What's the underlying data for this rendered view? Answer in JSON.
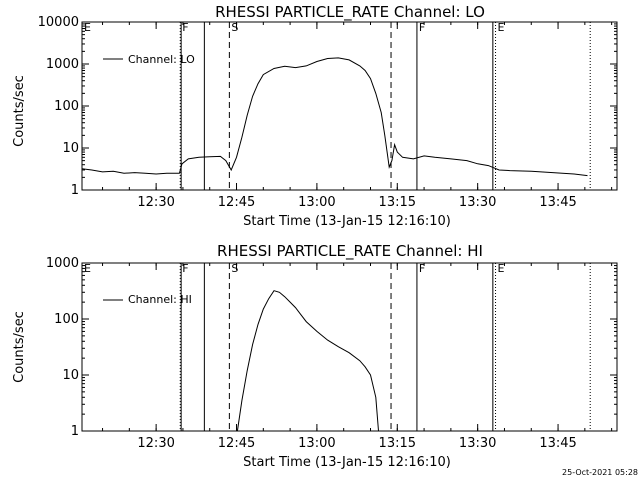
{
  "footer": {
    "timestamp": "25-Oct-2021 05:28"
  },
  "colors": {
    "background": "#ffffff",
    "ink": "#000000"
  },
  "chart_data": [
    {
      "type": "line",
      "title": "RHESSI PARTICLE_RATE Channel: LO",
      "xlabel": "Start Time (13-Jan-15 12:16:10)",
      "ylabel": "Counts/sec",
      "y_scale": "log",
      "ylim": [
        1,
        10000
      ],
      "xlim": [
        "12:16:10",
        "13:56:00"
      ],
      "y_ticks": [
        "1",
        "10",
        "100",
        "1000",
        "10000"
      ],
      "x_ticks": [
        "12:30",
        "12:45",
        "13:00",
        "13:15",
        "13:30",
        "13:45"
      ],
      "legend": {
        "entries": [
          "Channel: LO"
        ],
        "placement": "top-left"
      },
      "markers": [
        {
          "label": "E",
          "time": "12:16:10",
          "style": "dotted"
        },
        {
          "label": "F",
          "time": "12:34:30",
          "style": "dotted"
        },
        {
          "label": "",
          "time": "12:34:40",
          "style": "solid"
        },
        {
          "label": "",
          "time": "12:39:00",
          "style": "solid"
        },
        {
          "label": "S",
          "time": "12:43:40",
          "style": "dashed"
        },
        {
          "label": "",
          "time": "13:13:50",
          "style": "dashed"
        },
        {
          "label": "F",
          "time": "13:18:40",
          "style": "solid"
        },
        {
          "label": "",
          "time": "13:32:50",
          "style": "solid"
        },
        {
          "label": "E",
          "time": "13:33:20",
          "style": "dotted"
        },
        {
          "label": "",
          "time": "13:51:00",
          "style": "dotted"
        }
      ],
      "series": [
        {
          "name": "Channel: LO",
          "x": [
            "12:16:10",
            "12:18:00",
            "12:20:00",
            "12:22:00",
            "12:24:00",
            "12:26:00",
            "12:28:00",
            "12:30:00",
            "12:32:00",
            "12:34:20",
            "12:34:50",
            "12:36:00",
            "12:38:00",
            "12:40:00",
            "12:42:00",
            "12:43:00",
            "12:44:00",
            "12:45:00",
            "12:46:00",
            "12:47:00",
            "12:48:00",
            "12:49:00",
            "12:50:00",
            "12:52:00",
            "12:54:00",
            "12:56:00",
            "12:58:00",
            "13:00:00",
            "13:02:00",
            "13:04:00",
            "13:06:00",
            "13:08:00",
            "13:09:00",
            "13:10:00",
            "13:11:00",
            "13:12:00",
            "13:12:40",
            "13:13:30",
            "13:14:00",
            "13:14:30",
            "13:15:00",
            "13:16:00",
            "13:18:00",
            "13:20:00",
            "13:22:00",
            "13:25:00",
            "13:28:00",
            "13:30:00",
            "13:32:00",
            "13:34:00",
            "13:36:00",
            "13:40:00",
            "13:44:00",
            "13:48:00",
            "13:50:30"
          ],
          "values": [
            3.2,
            3.0,
            2.7,
            2.8,
            2.5,
            2.6,
            2.5,
            2.4,
            2.5,
            2.5,
            4.2,
            5.5,
            6.0,
            6.2,
            6.3,
            5.0,
            3.0,
            6.0,
            18,
            60,
            170,
            340,
            560,
            780,
            880,
            820,
            900,
            1150,
            1350,
            1400,
            1250,
            900,
            700,
            450,
            200,
            70,
            20,
            3.5,
            5.0,
            12,
            8,
            6.0,
            5.5,
            6.5,
            6.0,
            5.5,
            5.0,
            4.2,
            3.8,
            3.0,
            2.9,
            2.8,
            2.6,
            2.4,
            2.2
          ]
        }
      ]
    },
    {
      "type": "line",
      "title": "RHESSI PARTICLE_RATE Channel: HI",
      "xlabel": "Start Time (13-Jan-15 12:16:10)",
      "ylabel": "Counts/sec",
      "y_scale": "log",
      "ylim": [
        1,
        1000
      ],
      "xlim": [
        "12:16:10",
        "13:56:00"
      ],
      "y_ticks": [
        "1",
        "10",
        "100",
        "1000"
      ],
      "x_ticks": [
        "12:30",
        "12:45",
        "13:00",
        "13:15",
        "13:30",
        "13:45"
      ],
      "legend": {
        "entries": [
          "Channel: HI"
        ],
        "placement": "top-left"
      },
      "markers": [
        {
          "label": "E",
          "time": "12:16:10",
          "style": "dotted"
        },
        {
          "label": "F",
          "time": "12:34:30",
          "style": "dotted"
        },
        {
          "label": "",
          "time": "12:34:40",
          "style": "solid"
        },
        {
          "label": "",
          "time": "12:39:00",
          "style": "solid"
        },
        {
          "label": "S",
          "time": "12:43:40",
          "style": "dashed"
        },
        {
          "label": "",
          "time": "13:13:50",
          "style": "dashed"
        },
        {
          "label": "F",
          "time": "13:18:40",
          "style": "solid"
        },
        {
          "label": "",
          "time": "13:32:50",
          "style": "solid"
        },
        {
          "label": "E",
          "time": "13:33:20",
          "style": "dotted"
        },
        {
          "label": "",
          "time": "13:51:00",
          "style": "dotted"
        }
      ],
      "series": [
        {
          "name": "Channel: HI",
          "x": [
            "12:45:10",
            "12:46:00",
            "12:47:00",
            "12:48:00",
            "12:49:00",
            "12:50:00",
            "12:51:00",
            "12:52:00",
            "12:53:00",
            "12:54:00",
            "12:55:00",
            "12:56:00",
            "12:57:00",
            "12:58:00",
            "13:00:00",
            "13:02:00",
            "13:04:00",
            "13:06:00",
            "13:08:00",
            "13:09:00",
            "13:10:00",
            "13:11:00",
            "13:11:30"
          ],
          "values": [
            1.0,
            3.5,
            12,
            35,
            80,
            150,
            230,
            320,
            300,
            250,
            200,
            160,
            120,
            90,
            60,
            42,
            32,
            25,
            18,
            14,
            10,
            4,
            1.0
          ]
        }
      ]
    }
  ]
}
